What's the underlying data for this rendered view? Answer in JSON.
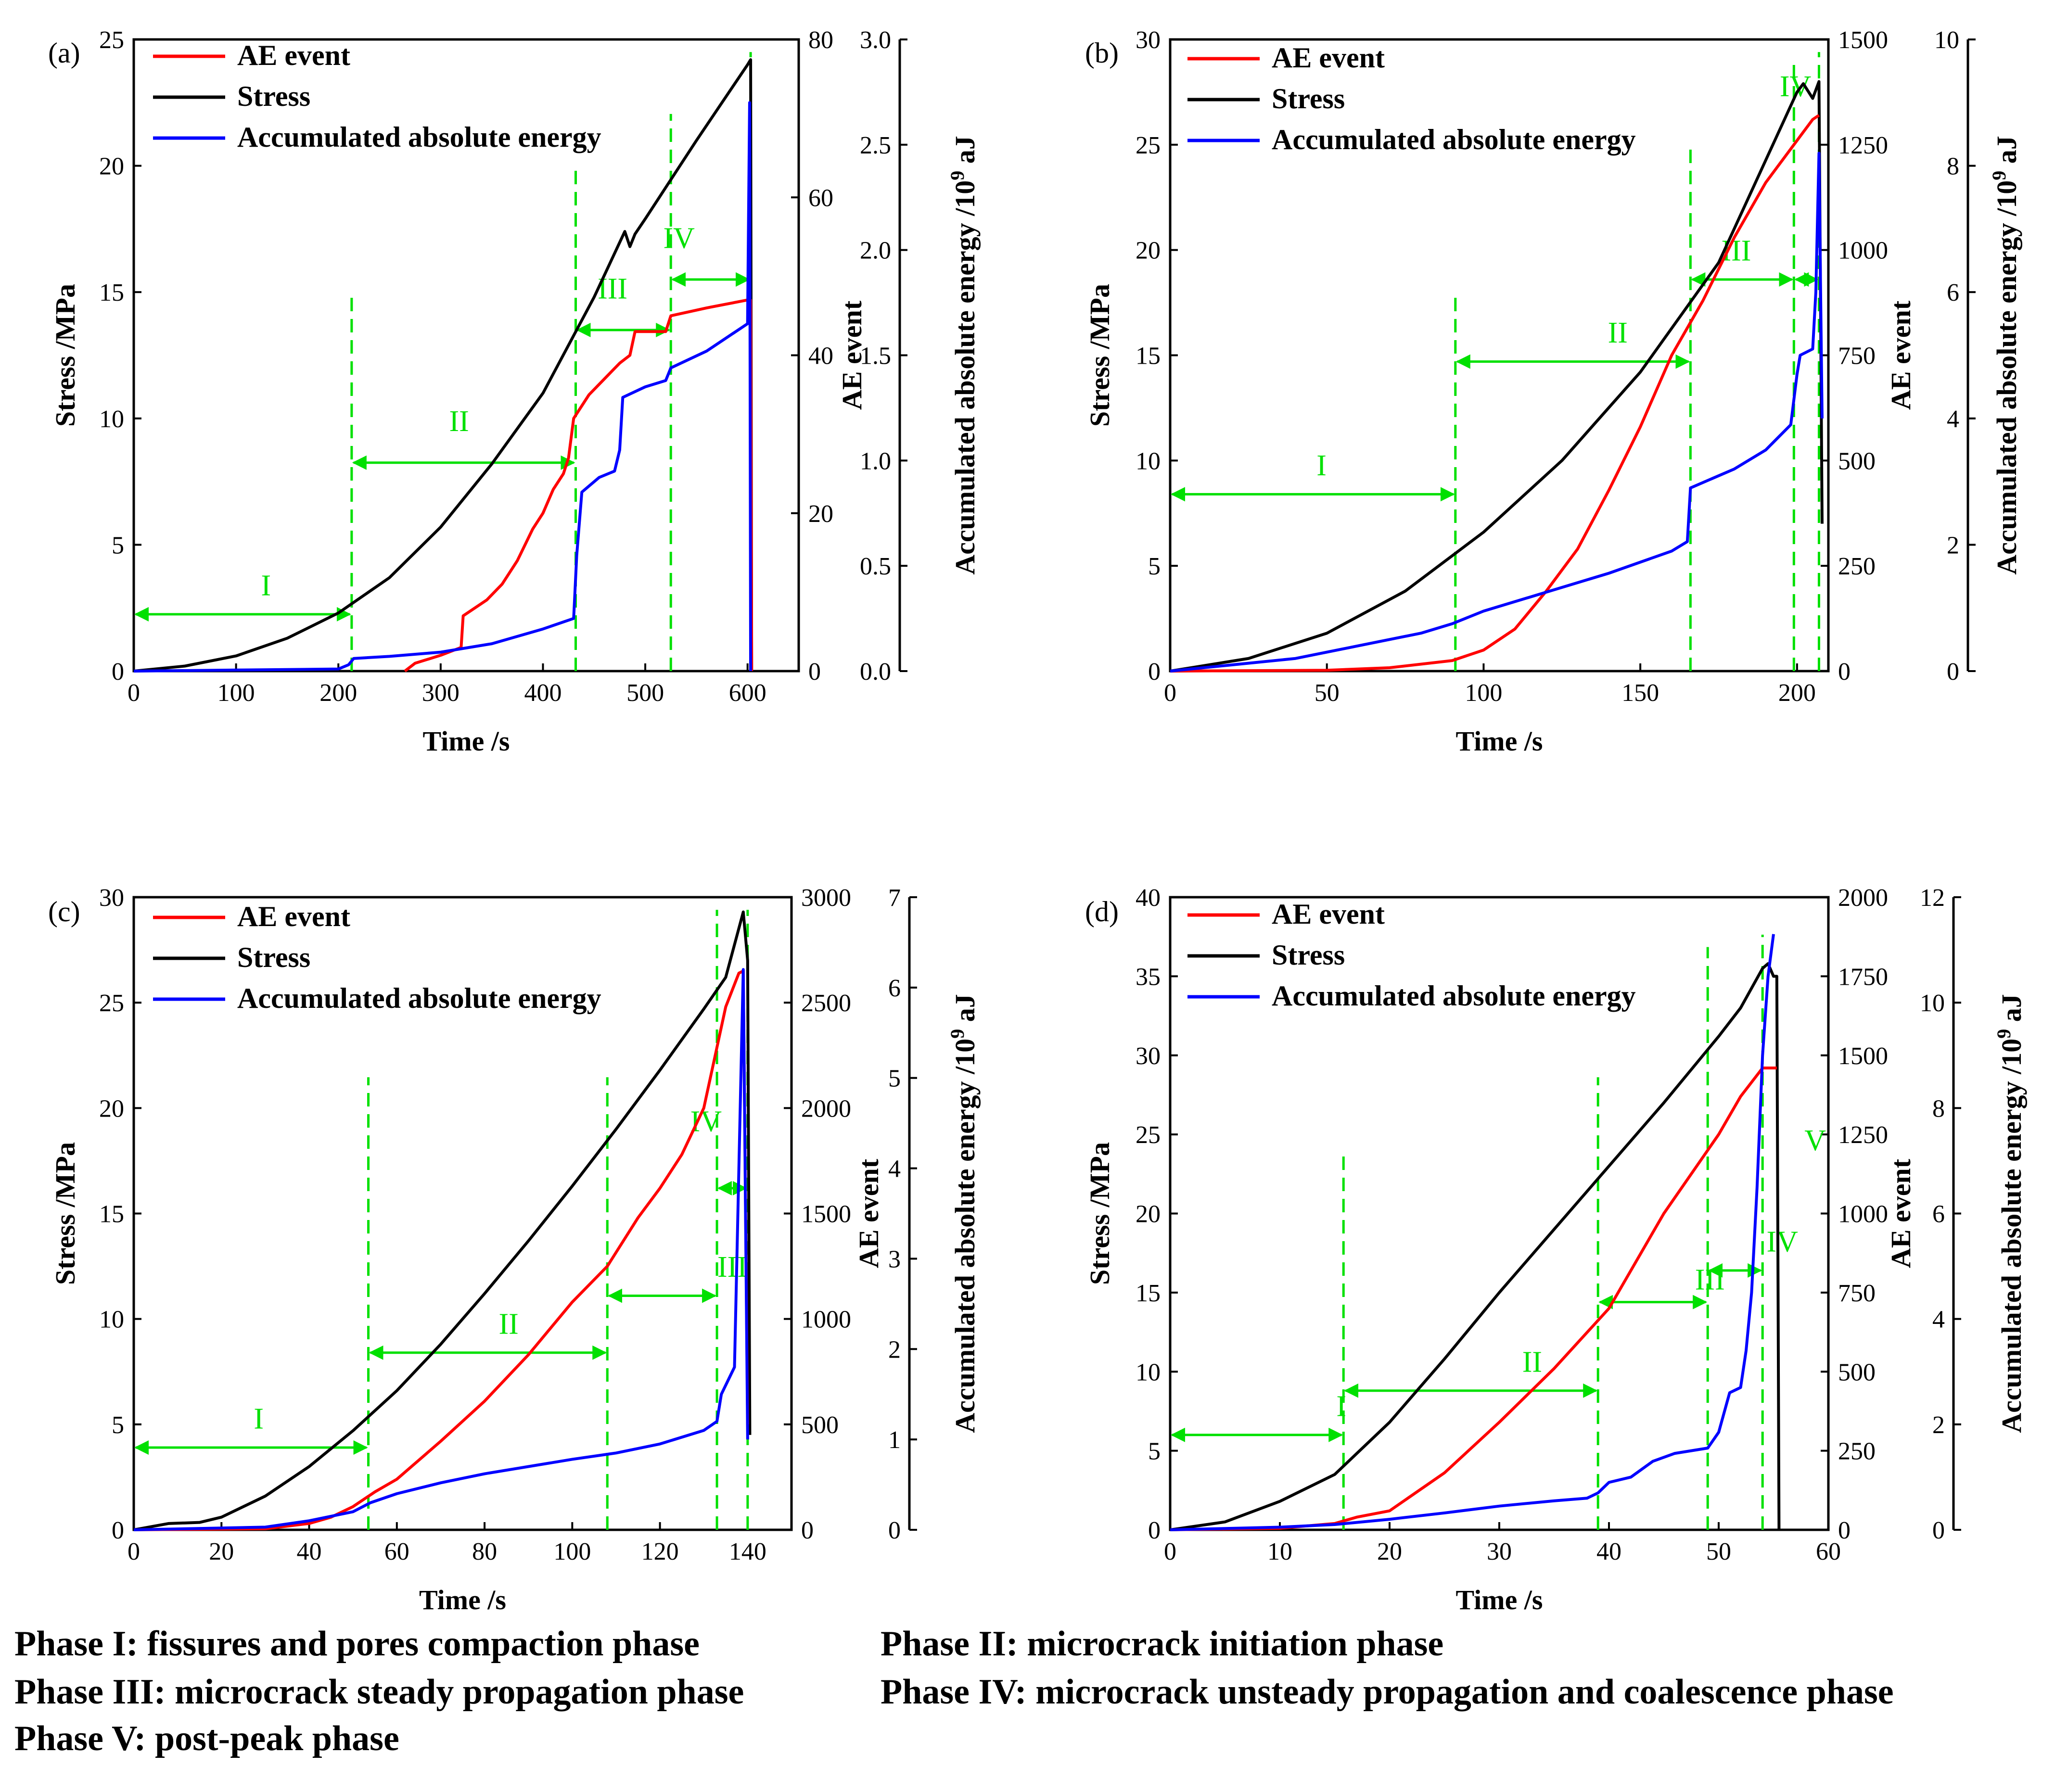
{
  "chart_data": [
    {
      "type": "line",
      "panel_label": "(a)",
      "xlabel": "Time /s",
      "ylabel": "Stress /MPa",
      "y2label": "AE event",
      "y3label_main": "Accumulated absolute energy /10",
      "y3label_sup": "9",
      "y3label_unit": " aJ",
      "xlim": [
        0,
        650
      ],
      "xticks": [
        "0",
        "100",
        "200",
        "300",
        "400",
        "500",
        "600"
      ],
      "xtick_values": [
        0,
        100,
        200,
        300,
        400,
        500,
        600
      ],
      "ylim": [
        0,
        25
      ],
      "yticks": [
        "0",
        "5",
        "10",
        "15",
        "20",
        "25"
      ],
      "ytick_values": [
        0,
        5,
        10,
        15,
        20,
        25
      ],
      "y2lim": [
        0,
        80
      ],
      "y2ticks": [
        "0",
        "20",
        "40",
        "60",
        "80"
      ],
      "y2tick_values": [
        0,
        20,
        40,
        60,
        80
      ],
      "y3lim": [
        0,
        3.0
      ],
      "y3ticks": [
        "0.0",
        "0.5",
        "1.0",
        "1.5",
        "2.0",
        "2.5",
        "3.0"
      ],
      "y3tick_values": [
        0,
        0.5,
        1.0,
        1.5,
        2.0,
        2.5,
        3.0
      ],
      "legend": [
        "AE event",
        "Stress",
        "Accumulated absolute energy"
      ],
      "series": [
        {
          "name": "Stress",
          "axis": "y",
          "color": "#000000",
          "x": [
            0,
            50,
            100,
            150,
            200,
            250,
            300,
            350,
            400,
            450,
            480,
            485,
            490,
            500,
            550,
            600,
            603,
            604
          ],
          "y": [
            0,
            0.2,
            0.6,
            1.3,
            2.3,
            3.7,
            5.7,
            8.2,
            11.0,
            14.8,
            17.4,
            16.8,
            17.3,
            17.9,
            21.0,
            24.0,
            24.2,
            0
          ]
        },
        {
          "name": "AE event",
          "axis": "y2",
          "color": "#ff0000",
          "x": [
            265,
            275,
            300,
            320,
            322,
            345,
            360,
            375,
            390,
            400,
            410,
            420,
            425,
            430,
            445,
            460,
            475,
            485,
            490,
            500,
            505,
            520,
            525,
            560,
            600,
            603,
            604
          ],
          "y": [
            0,
            1,
            2,
            3,
            7,
            9,
            11,
            14,
            18,
            20,
            23,
            25,
            27,
            32,
            35,
            37,
            39,
            40,
            43,
            43,
            43,
            43,
            45,
            46,
            47,
            47,
            0
          ]
        },
        {
          "name": "Accumulated absolute energy",
          "axis": "y3",
          "color": "#0000ff",
          "x": [
            0,
            100,
            200,
            210,
            215,
            250,
            300,
            350,
            400,
            430,
            433,
            438,
            455,
            470,
            475,
            478,
            500,
            520,
            525,
            560,
            600,
            602,
            603
          ],
          "y": [
            0,
            0.005,
            0.01,
            0.03,
            0.06,
            0.07,
            0.09,
            0.13,
            0.2,
            0.25,
            0.55,
            0.85,
            0.92,
            0.95,
            1.05,
            1.3,
            1.35,
            1.38,
            1.44,
            1.52,
            1.65,
            2.7,
            0
          ]
        }
      ],
      "phase_lines_x": [
        213,
        432,
        525,
        603
      ],
      "phase_labels": [
        "I",
        "II",
        "III",
        "IV"
      ]
    },
    {
      "type": "line",
      "panel_label": "(b)",
      "xlabel": "Time /s",
      "ylabel": "Stress /MPa",
      "y2label": "AE event",
      "y3label_main": "Accumulated absolute energy /10",
      "y3label_sup": "9",
      "y3label_unit": " aJ",
      "xlim": [
        0,
        210
      ],
      "xticks": [
        "0",
        "50",
        "100",
        "150",
        "200"
      ],
      "xtick_values": [
        0,
        50,
        100,
        150,
        200
      ],
      "ylim": [
        0,
        30
      ],
      "yticks": [
        "0",
        "5",
        "10",
        "15",
        "20",
        "25",
        "30"
      ],
      "ytick_values": [
        0,
        5,
        10,
        15,
        20,
        25,
        30
      ],
      "y2lim": [
        0,
        1500
      ],
      "y2ticks": [
        "0",
        "250",
        "500",
        "750",
        "1000",
        "1250",
        "1500"
      ],
      "y2tick_values": [
        0,
        250,
        500,
        750,
        1000,
        1250,
        1500
      ],
      "y3lim": [
        0,
        10
      ],
      "y3ticks": [
        "0",
        "2",
        "4",
        "6",
        "8",
        "10"
      ],
      "y3tick_values": [
        0,
        2,
        4,
        6,
        8,
        10
      ],
      "legend": [
        "AE event",
        "Stress",
        "Accumulated absolute energy"
      ],
      "series": [
        {
          "name": "Stress",
          "axis": "y",
          "color": "#000000",
          "x": [
            0,
            25,
            50,
            75,
            100,
            125,
            150,
            175,
            200,
            202,
            205,
            207,
            208
          ],
          "y": [
            0,
            0.6,
            1.8,
            3.8,
            6.6,
            10.0,
            14.2,
            19.4,
            27.5,
            27.9,
            27.2,
            28.0,
            7.0
          ]
        },
        {
          "name": "AE event",
          "axis": "y2",
          "color": "#ff0000",
          "x": [
            0,
            50,
            70,
            90,
            100,
            110,
            120,
            130,
            140,
            150,
            160,
            170,
            180,
            190,
            200,
            205,
            207
          ],
          "y": [
            0,
            2,
            8,
            25,
            50,
            100,
            190,
            290,
            430,
            580,
            750,
            880,
            1030,
            1160,
            1260,
            1310,
            1320
          ]
        },
        {
          "name": "Accumulated absolute energy",
          "axis": "y3",
          "color": "#0000ff",
          "x": [
            0,
            20,
            40,
            60,
            80,
            90,
            95,
            100,
            120,
            140,
            160,
            165,
            166,
            180,
            190,
            198,
            200,
            201,
            205,
            206,
            207,
            208
          ],
          "y": [
            0,
            0.1,
            0.2,
            0.4,
            0.6,
            0.75,
            0.85,
            0.95,
            1.25,
            1.55,
            1.9,
            2.05,
            2.9,
            3.2,
            3.5,
            3.9,
            4.7,
            5.0,
            5.1,
            6.0,
            8.2,
            4.0
          ]
        }
      ],
      "phase_lines_x": [
        91,
        166,
        199,
        207
      ],
      "phase_labels": [
        "I",
        "II",
        "III",
        "IV"
      ]
    },
    {
      "type": "line",
      "panel_label": "(c)",
      "xlabel": "Time /s",
      "ylabel": "Stress /MPa",
      "y2label": "AE event",
      "y3label_main": "Accumulated absolute energy /10",
      "y3label_sup": "9",
      "y3label_unit": " aJ",
      "xlim": [
        0,
        150
      ],
      "xticks": [
        "0",
        "20",
        "40",
        "60",
        "80",
        "100",
        "120",
        "140"
      ],
      "xtick_values": [
        0,
        20,
        40,
        60,
        80,
        100,
        120,
        140
      ],
      "ylim": [
        0,
        30
      ],
      "yticks": [
        "0",
        "5",
        "10",
        "15",
        "20",
        "25",
        "30"
      ],
      "ytick_values": [
        0,
        5,
        10,
        15,
        20,
        25,
        30
      ],
      "y2lim": [
        0,
        3000
      ],
      "y2ticks": [
        "0",
        "500",
        "1000",
        "1500",
        "2000",
        "2500",
        "3000"
      ],
      "y2tick_values": [
        0,
        500,
        1000,
        1500,
        2000,
        2500,
        3000
      ],
      "y3lim": [
        0,
        7
      ],
      "y3ticks": [
        "0",
        "1",
        "2",
        "3",
        "4",
        "5",
        "6",
        "7"
      ],
      "y3tick_values": [
        0,
        1,
        2,
        3,
        4,
        5,
        6,
        7
      ],
      "legend": [
        "AE event",
        "Stress",
        "Accumulated absolute energy"
      ],
      "series": [
        {
          "name": "Stress",
          "axis": "y",
          "color": "#000000",
          "x": [
            0,
            8,
            15,
            20,
            30,
            40,
            50,
            60,
            70,
            80,
            90,
            100,
            110,
            120,
            130,
            135,
            139,
            140,
            140.5
          ],
          "y": [
            0,
            0.3,
            0.35,
            0.6,
            1.6,
            3.0,
            4.7,
            6.6,
            8.8,
            11.2,
            13.7,
            16.3,
            19.0,
            21.8,
            24.7,
            26.2,
            29.3,
            27.0,
            4.5
          ]
        },
        {
          "name": "AE event",
          "axis": "y2",
          "color": "#ff0000",
          "x": [
            0,
            30,
            40,
            45,
            50,
            55,
            60,
            70,
            80,
            90,
            100,
            108,
            115,
            120,
            125,
            130,
            135,
            138,
            139,
            140
          ],
          "y": [
            0,
            5,
            30,
            60,
            110,
            180,
            240,
            420,
            610,
            830,
            1080,
            1250,
            1480,
            1620,
            1780,
            2000,
            2480,
            2640,
            2650,
            500
          ]
        },
        {
          "name": "Accumulated absolute energy",
          "axis": "y3",
          "color": "#0000ff",
          "x": [
            0,
            30,
            40,
            50,
            54,
            60,
            70,
            80,
            90,
            100,
            110,
            120,
            130,
            133,
            134,
            137,
            138,
            139,
            140
          ],
          "y": [
            0,
            0.03,
            0.1,
            0.2,
            0.3,
            0.4,
            0.52,
            0.62,
            0.7,
            0.78,
            0.85,
            0.95,
            1.1,
            1.2,
            1.5,
            1.8,
            4.0,
            6.2,
            1.0
          ]
        }
      ],
      "phase_lines_x": [
        53.5,
        108,
        133,
        140
      ],
      "phase_labels": [
        "I",
        "II",
        "III",
        "IV"
      ]
    },
    {
      "type": "line",
      "panel_label": "(d)",
      "xlabel": "Time /s",
      "ylabel": "Stress /MPa",
      "y2label": "AE event",
      "y3label_main": "Accumulated absolute energy /10",
      "y3label_sup": "9",
      "y3label_unit": " aJ",
      "xlim": [
        0,
        60
      ],
      "xticks": [
        "0",
        "10",
        "20",
        "30",
        "40",
        "50",
        "60"
      ],
      "xtick_values": [
        0,
        10,
        20,
        30,
        40,
        50,
        60
      ],
      "ylim": [
        0,
        40
      ],
      "yticks": [
        "0",
        "5",
        "10",
        "15",
        "20",
        "25",
        "30",
        "35",
        "40"
      ],
      "ytick_values": [
        0,
        5,
        10,
        15,
        20,
        25,
        30,
        35,
        40
      ],
      "y2lim": [
        0,
        2000
      ],
      "y2ticks": [
        "0",
        "250",
        "500",
        "750",
        "1000",
        "1250",
        "1500",
        "1750",
        "2000"
      ],
      "y2tick_values": [
        0,
        250,
        500,
        750,
        1000,
        1250,
        1500,
        1750,
        2000
      ],
      "y3lim": [
        0,
        12
      ],
      "y3ticks": [
        "0",
        "2",
        "4",
        "6",
        "8",
        "10",
        "12"
      ],
      "y3tick_values": [
        0,
        2,
        4,
        6,
        8,
        10,
        12
      ],
      "legend": [
        "AE event",
        "Stress",
        "Accumulated absolute energy"
      ],
      "series": [
        {
          "name": "Stress",
          "axis": "y",
          "color": "#000000",
          "x": [
            0,
            5,
            10,
            15,
            20,
            25,
            30,
            35,
            40,
            45,
            50,
            52,
            54,
            54.5,
            55,
            55.3,
            55.5
          ],
          "y": [
            0,
            0.5,
            1.8,
            3.5,
            6.8,
            10.8,
            15.0,
            19.0,
            23.0,
            27.0,
            31.2,
            33.0,
            35.5,
            35.8,
            35.0,
            35.0,
            0
          ]
        },
        {
          "name": "AE event",
          "axis": "y2",
          "color": "#ff0000",
          "x": [
            0,
            10,
            15,
            17,
            20,
            25,
            30,
            35,
            40,
            45,
            50,
            52,
            54,
            55,
            55.3
          ],
          "y": [
            0,
            5,
            20,
            40,
            60,
            180,
            340,
            510,
            700,
            1000,
            1250,
            1370,
            1460,
            1460,
            1460
          ]
        },
        {
          "name": "Accumulated absolute energy",
          "axis": "y3",
          "color": "#0000ff",
          "x": [
            0,
            10,
            15,
            20,
            25,
            30,
            35,
            38,
            39,
            40,
            42,
            44,
            46,
            49,
            50,
            51,
            52,
            52.5,
            53,
            53.5,
            54,
            54.5,
            55
          ],
          "y": [
            0,
            0.05,
            0.1,
            0.2,
            0.32,
            0.45,
            0.55,
            0.6,
            0.7,
            0.9,
            1.0,
            1.3,
            1.45,
            1.55,
            1.85,
            2.6,
            2.7,
            3.4,
            4.5,
            6.5,
            9.0,
            10.5,
            11.3
          ]
        }
      ],
      "phase_lines_x": [
        15.8,
        39,
        49,
        54
      ],
      "phase_labels": [
        "I",
        "II",
        "III",
        "IV",
        "V"
      ]
    }
  ],
  "footnotes": {
    "phase1": "Phase I: fissures and pores compaction phase",
    "phase2": "Phase II: microcrack initiation phase",
    "phase3": "Phase III: microcrack steady propagation phase",
    "phase4": "Phase IV: microcrack unsteady propagation and coalescence phase",
    "phase5": "Phase V: post-peak phase"
  },
  "colors": {
    "stress": "#000000",
    "ae_event": "#ff0000",
    "energy": "#0000ff",
    "phase_lines": "#00e000"
  }
}
